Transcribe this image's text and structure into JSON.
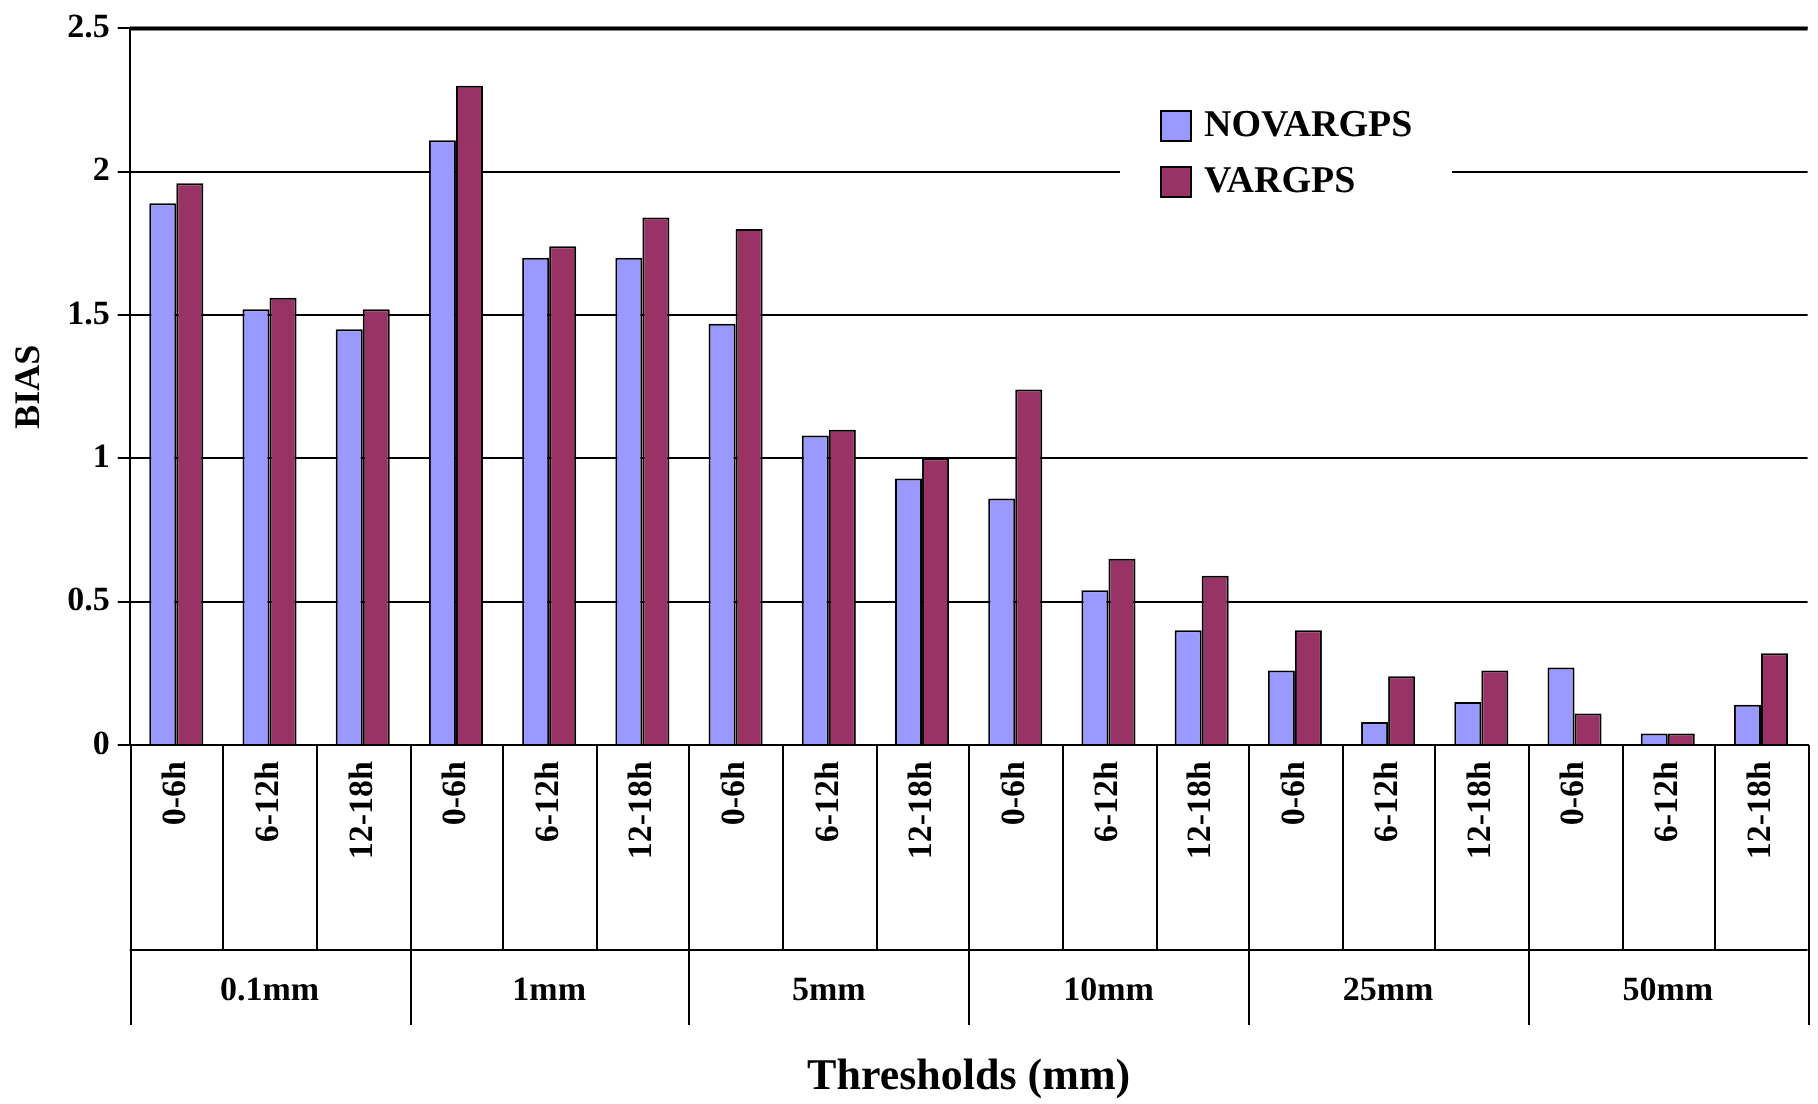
{
  "chart_data": {
    "type": "bar",
    "xlabel": "Thresholds (mm)",
    "ylabel": "BIAS",
    "categories": [
      "0-6h",
      "6-12h",
      "12-18h",
      "0-6h",
      "6-12h",
      "12-18h",
      "0-6h",
      "6-12h",
      "12-18h",
      "0-6h",
      "6-12h",
      "12-18h",
      "0-6h",
      "6-12h",
      "12-18h",
      "0-6h",
      "6-12h",
      "12-18h"
    ],
    "annotations": [
      "0.1mm",
      "1mm",
      "5mm",
      "10mm",
      "25mm",
      "50mm"
    ],
    "series": [
      {
        "name": "NOVARGPS",
        "color": "#9999ff",
        "values": [
          1.89,
          1.52,
          1.45,
          2.11,
          1.7,
          1.7,
          1.47,
          1.08,
          0.93,
          0.86,
          0.54,
          0.4,
          0.26,
          0.08,
          0.15,
          0.27,
          0.04,
          0.14
        ]
      },
      {
        "name": "VARGPS",
        "color": "#993366",
        "values": [
          1.96,
          1.56,
          1.52,
          2.3,
          1.74,
          1.84,
          1.8,
          1.1,
          1.0,
          1.24,
          0.65,
          0.59,
          0.4,
          0.24,
          0.26,
          0.11,
          0.04,
          0.32
        ]
      }
    ],
    "ylim": [
      0,
      2.5
    ],
    "yticks": [
      0,
      0.5,
      1,
      1.5,
      2,
      2.5
    ],
    "grid": "y",
    "legend": "top"
  }
}
